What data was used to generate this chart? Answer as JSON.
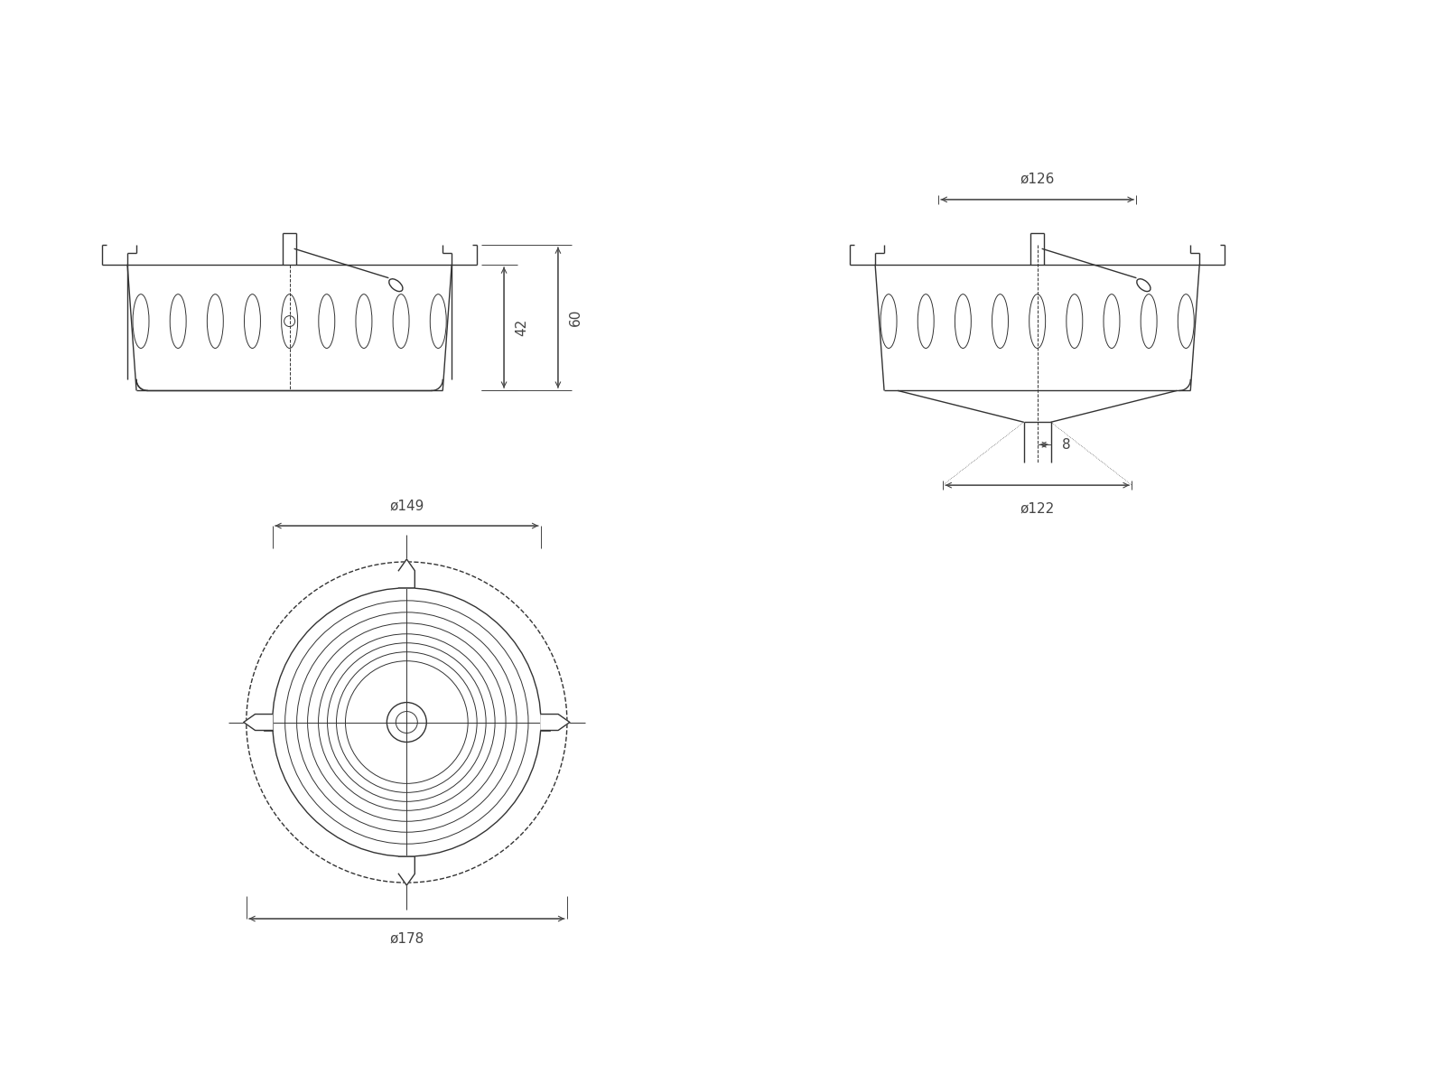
{
  "bg_color": "#ffffff",
  "line_color": "#333333",
  "dim_color": "#444444",
  "lw": 1.0,
  "lw_thick": 1.5,
  "lw_thin": 0.7,
  "fig_w": 15.99,
  "fig_h": 12.0,
  "font_size": 11,
  "dim_42": "42",
  "dim_60": "60",
  "dim_126": "ø126",
  "dim_122": "ø122",
  "dim_8": "8",
  "dim_149": "ø149",
  "dim_178": "ø178"
}
